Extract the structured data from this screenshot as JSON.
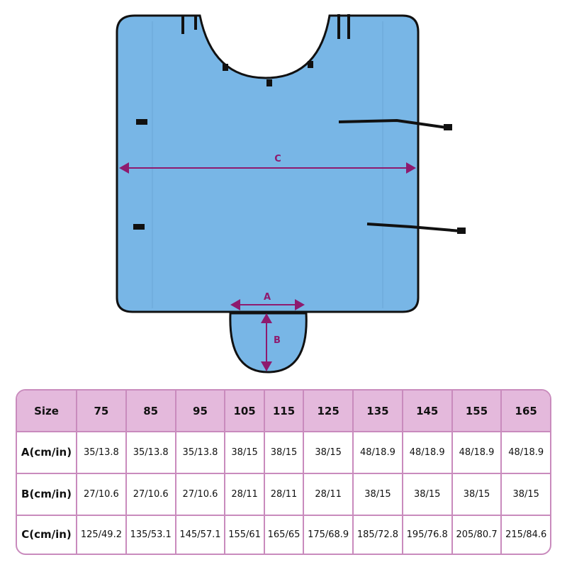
{
  "colors": {
    "cover": "#78b6e6",
    "measure": "#8e1a6e",
    "table_header": "#e4b9dc",
    "table_border": "#c98bbd"
  },
  "diagram": {
    "label_c": "C",
    "label_a": "A",
    "label_b": "B"
  },
  "table": {
    "header": [
      "Size",
      "75",
      "85",
      "95",
      "105",
      "115",
      "125",
      "135",
      "145",
      "155",
      "165"
    ],
    "rows": [
      {
        "label": "A(cm/in)",
        "values": [
          "35/13.8",
          "35/13.8",
          "35/13.8",
          "38/15",
          "38/15",
          "38/15",
          "48/18.9",
          "48/18.9",
          "48/18.9",
          "48/18.9"
        ]
      },
      {
        "label": "B(cm/in)",
        "values": [
          "27/10.6",
          "27/10.6",
          "27/10.6",
          "28/11",
          "28/11",
          "28/11",
          "38/15",
          "38/15",
          "38/15",
          "38/15"
        ]
      },
      {
        "label": "C(cm/in)",
        "values": [
          "125/49.2",
          "135/53.1",
          "145/57.1",
          "155/61",
          "165/65",
          "175/68.9",
          "185/72.8",
          "195/76.8",
          "205/80.7",
          "215/84.6"
        ]
      }
    ]
  }
}
